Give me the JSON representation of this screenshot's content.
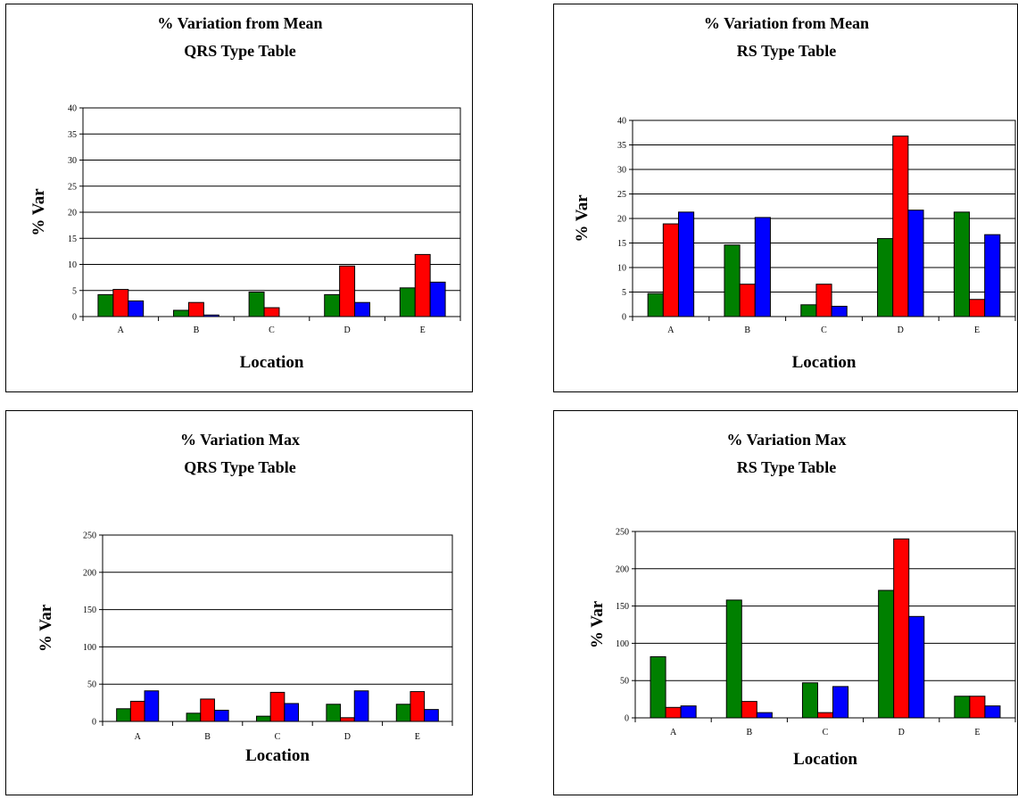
{
  "colors": {
    "series": [
      "#008000",
      "#ff0000",
      "#0000ff"
    ]
  },
  "chart_data": [
    {
      "type": "bar",
      "title": [
        "% Variation from Mean",
        "QRS Type Table"
      ],
      "xlabel": "Location",
      "ylabel": "% Var",
      "categories": [
        "A",
        "B",
        "C",
        "D",
        "E"
      ],
      "ylim": [
        0,
        40
      ],
      "yticks": [
        "0",
        "5",
        "10",
        "15",
        "20",
        "25",
        "30",
        "35",
        "40"
      ],
      "grid": true,
      "legend": "none",
      "series": [
        {
          "values": [
            4.2,
            1.2,
            4.7,
            4.2,
            5.5
          ]
        },
        {
          "values": [
            5.2,
            2.7,
            1.7,
            9.7,
            11.9
          ]
        },
        {
          "values": [
            3.0,
            0.3,
            0,
            2.7,
            6.6
          ]
        }
      ]
    },
    {
      "type": "bar",
      "title": [
        "% Variation from Mean",
        "RS Type Table"
      ],
      "xlabel": "Location",
      "ylabel": "% Var",
      "categories": [
        "A",
        "B",
        "C",
        "D",
        "E"
      ],
      "ylim": [
        0,
        40
      ],
      "yticks": [
        "0",
        "5",
        "10",
        "15",
        "20",
        "25",
        "30",
        "35",
        "40"
      ],
      "grid": true,
      "legend": "none",
      "series": [
        {
          "values": [
            4.7,
            14.6,
            2.4,
            15.9,
            21.3
          ]
        },
        {
          "values": [
            18.9,
            6.6,
            6.6,
            36.8,
            3.5
          ]
        },
        {
          "values": [
            21.3,
            20.2,
            2.1,
            21.7,
            16.7
          ]
        }
      ]
    },
    {
      "type": "bar",
      "title": [
        "% Variation Max",
        "QRS Type Table"
      ],
      "xlabel": "Location",
      "ylabel": "% Var",
      "categories": [
        "A",
        "B",
        "C",
        "D",
        "E"
      ],
      "ylim": [
        0,
        250
      ],
      "yticks": [
        "0",
        "50",
        "100",
        "150",
        "200",
        "250"
      ],
      "grid": true,
      "legend": "none",
      "series": [
        {
          "values": [
            17,
            11,
            7,
            23,
            23
          ]
        },
        {
          "values": [
            27,
            30,
            39,
            5,
            40
          ]
        },
        {
          "values": [
            41,
            15,
            24,
            41,
            16
          ]
        }
      ]
    },
    {
      "type": "bar",
      "title": [
        "% Variation Max",
        "RS Type Table"
      ],
      "xlabel": "Location",
      "ylabel": "% Var",
      "categories": [
        "A",
        "B",
        "C",
        "D",
        "E"
      ],
      "ylim": [
        0,
        250
      ],
      "yticks": [
        "0",
        "50",
        "100",
        "150",
        "200",
        "250"
      ],
      "grid": true,
      "legend": "none",
      "series": [
        {
          "values": [
            82,
            158,
            47,
            171,
            29
          ]
        },
        {
          "values": [
            14,
            22,
            7,
            240,
            29
          ]
        },
        {
          "values": [
            16,
            7,
            42,
            136,
            16
          ]
        }
      ]
    }
  ]
}
